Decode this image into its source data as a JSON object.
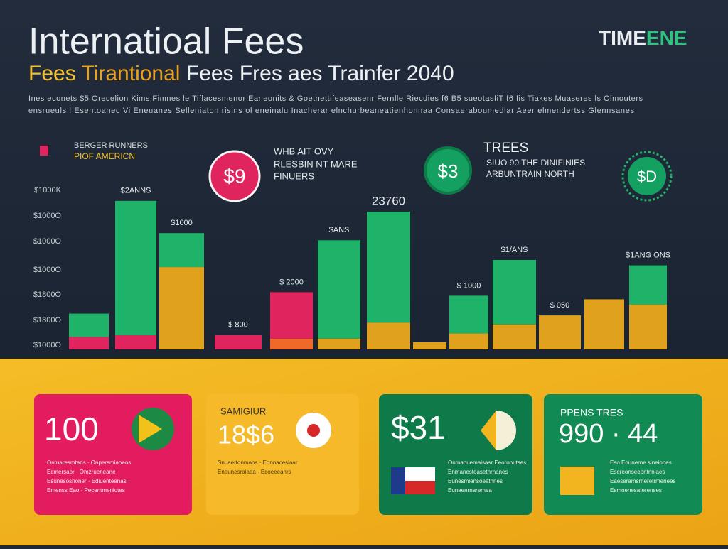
{
  "header": {
    "title": "Internatioal Fees",
    "subtitle_a": "Fees",
    "subtitle_b": "Tirantional",
    "subtitle_c": "Fees Fres aes Trainfer 2040",
    "brand_a": "TIME",
    "brand_b": "ENE",
    "description": [
      "Ines econets $5 Orecelion Kims Fimnes le Tiflacesmenor Eaneonits & Goetnettifeaseasenr Fernlle Riecdies f6 B5 sueotasfiT f6 fis Tiakes Muaseres ls Olmouters",
      "ensrueuls l Esentoanec Vi Eneuanes Selleniaton risins ol eneinalu Inacherar elnchurbeaneatienhonnaa Consaeraboumedlar Aeer elmendertss Glennsanes"
    ]
  },
  "chart": {
    "legend": [
      "BERGER RUNNERS",
      "PIOF AMERICN"
    ],
    "ylim": [
      0,
      100
    ],
    "yticks": [
      "$1000K",
      "$1000O",
      "$1000O",
      "$1000O",
      "$1800O",
      "$1800O",
      "$1000O"
    ],
    "bars": [
      {
        "label": null,
        "segments": [
          {
            "color": "#e0245e",
            "value": 7
          },
          {
            "color": "#1fb36a",
            "value": 13
          }
        ]
      },
      {
        "label": "$2ANNS",
        "segments": [
          {
            "color": "#e0245e",
            "value": 8
          },
          {
            "color": "#1fb36a",
            "value": 75
          }
        ]
      },
      {
        "label": "$1000",
        "segments": [
          {
            "color": "#e0a21c",
            "value": 46
          },
          {
            "color": "#1fb36a",
            "value": 19
          }
        ]
      },
      {
        "label": "$ 800",
        "segments": [
          {
            "color": "#e0245e",
            "value": 8
          }
        ]
      },
      {
        "label": "$ 2000",
        "segments": [
          {
            "color": "#ef6a2a",
            "value": 6
          },
          {
            "color": "#e0245e",
            "value": 26
          }
        ]
      },
      {
        "label": "$ANS",
        "segments": [
          {
            "color": "#e0a21c",
            "value": 6
          },
          {
            "color": "#1fb36a",
            "value": 55
          }
        ]
      },
      {
        "label": "23760",
        "segments": [
          {
            "color": "#e0a21c",
            "value": 15
          },
          {
            "color": "#1fb36a",
            "value": 62
          }
        ]
      },
      {
        "label": null,
        "segments": [
          {
            "color": "#e0a21c",
            "value": 4
          }
        ]
      },
      {
        "label": "$ 1000",
        "segments": [
          {
            "color": "#e0a21c",
            "value": 9
          },
          {
            "color": "#1fb36a",
            "value": 21
          }
        ]
      },
      {
        "label": "$1/ANS",
        "segments": [
          {
            "color": "#e0a21c",
            "value": 14
          },
          {
            "color": "#1fb36a",
            "value": 36
          }
        ]
      },
      {
        "label": "$ 050",
        "segments": [
          {
            "color": "#e0a21c",
            "value": 19
          }
        ]
      },
      {
        "label": null,
        "segments": [
          {
            "color": "#e0a21c",
            "value": 28
          }
        ]
      },
      {
        "label": "$1ANG ONS",
        "segments": [
          {
            "color": "#e0a21c",
            "value": 25
          },
          {
            "color": "#1fb36a",
            "value": 22
          }
        ]
      }
    ]
  },
  "callouts": [
    {
      "badge": "$9",
      "lines": [
        "WHB AIT OVY",
        "RLESBIN NT MARE",
        "FINUERS"
      ]
    },
    {
      "badge": "$3",
      "heading": "TREES",
      "lines": [
        "SIUO 90 THE DINIFINIES",
        "ARBUNTRAIN NORTH"
      ]
    },
    {
      "badge": "$D"
    }
  ],
  "cards": [
    {
      "value": "100",
      "lines": [
        "Ontuaresmtans · Onpersmiaoens",
        "Ecmersaor · Omzrueneane",
        "Esunesosnoner · Ediuenteenasi",
        "Emenss Eao · Pecentmeniotes"
      ]
    },
    {
      "heading": "SAMIGIUR",
      "value": "18$6",
      "lines": [
        "Snuaertonmaos · Eonnacesiaar",
        "Eneunesraiaea · Ecoeeeanrs"
      ]
    },
    {
      "value": "$31",
      "lines": [
        "Onmanuemaisasr Eeoronutses",
        "Enmanestoasetnrnanes",
        "Eunesmiensoeatnnes",
        "Eunaenrnaremea"
      ]
    },
    {
      "heading": "PPENS TRES",
      "value": "990 · 44",
      "lines": [
        "Eso Eounerne sineiones",
        "Esereonseeontnniaes",
        "Eaeseramsrheretrmenees",
        "Esmnenesaterenses"
      ]
    }
  ]
}
